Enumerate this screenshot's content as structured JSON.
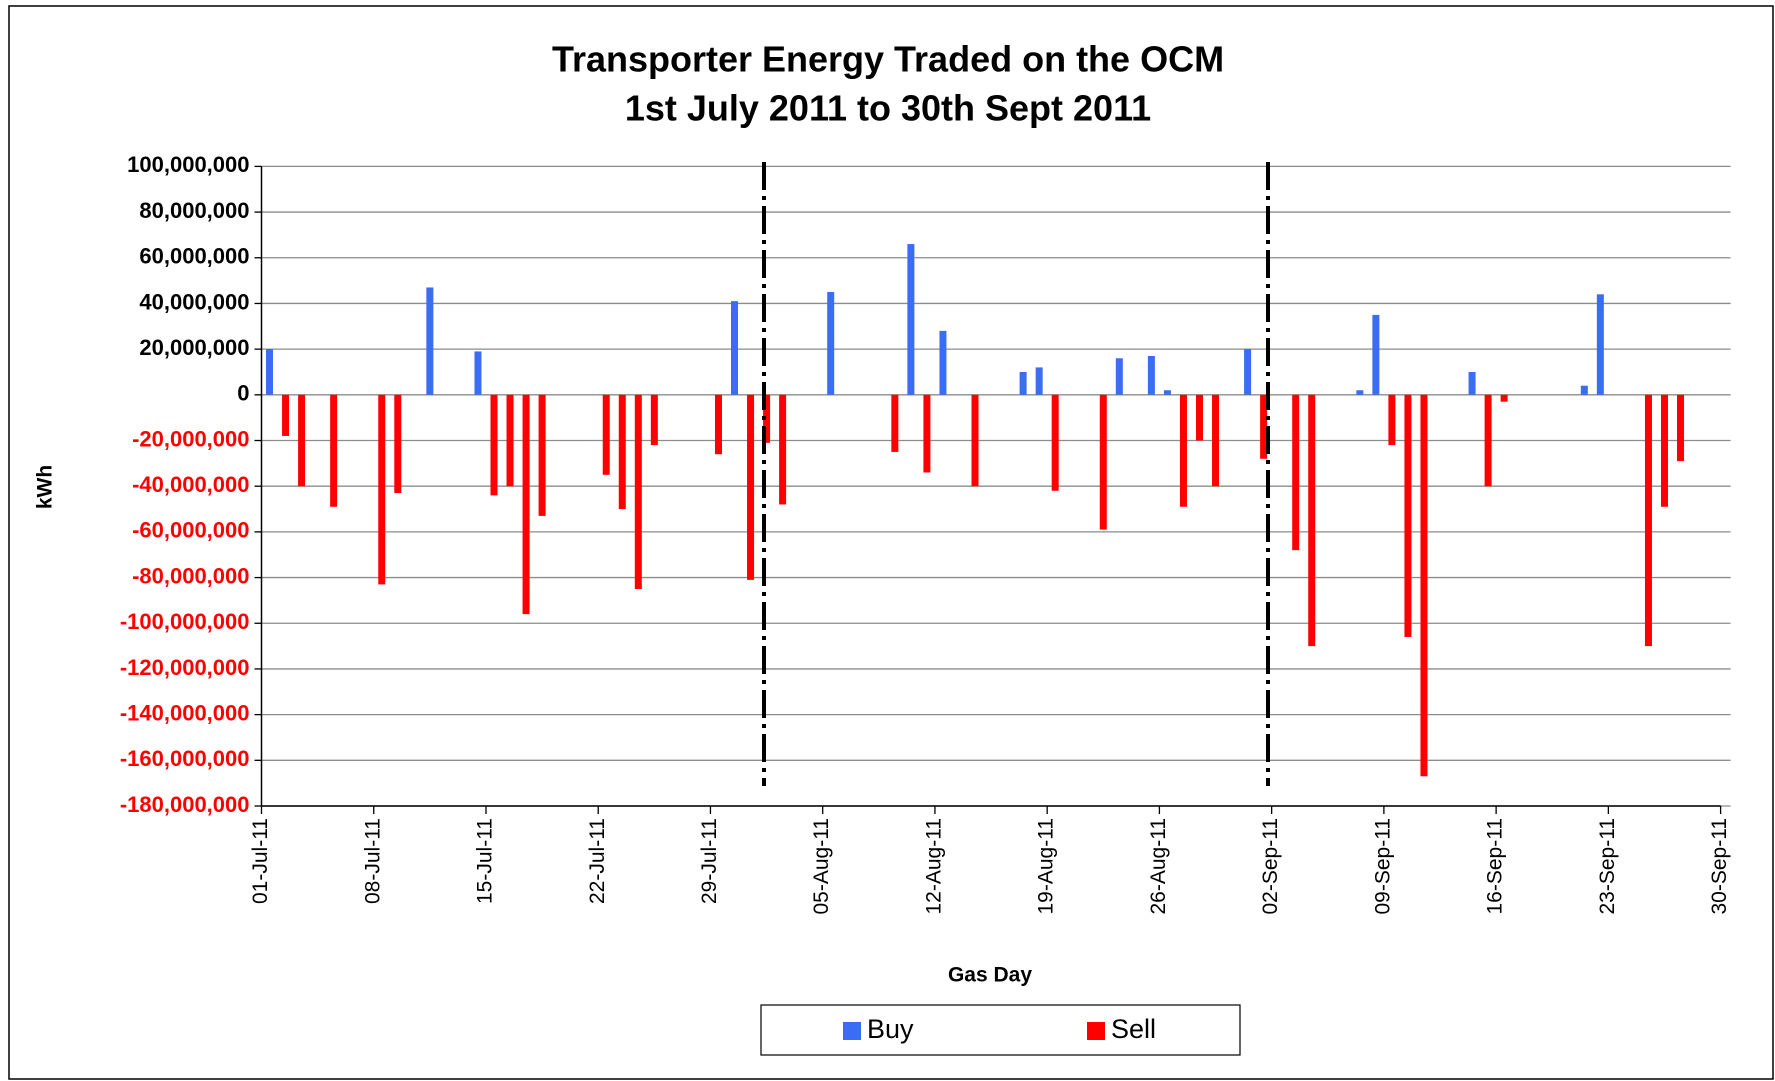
{
  "chart_data": {
    "type": "bar",
    "title": "Transporter Energy Traded on the OCM",
    "subtitle": "1st July 2011 to 30th Sept 2011",
    "x_label": "Gas Day",
    "y_label": "kWh",
    "x": [
      "01-Jul-11",
      "02-Jul-11",
      "03-Jul-11",
      "05-Jul-11",
      "08-Jul-11",
      "09-Jul-11",
      "11-Jul-11",
      "14-Jul-11",
      "15-Jul-11",
      "16-Jul-11",
      "17-Jul-11",
      "18-Jul-11",
      "22-Jul-11",
      "23-Jul-11",
      "24-Jul-11",
      "25-Jul-11",
      "29-Jul-11",
      "30-Jul-11",
      "31-Jul-11",
      "01-Aug-11",
      "02-Aug-11",
      "05-Aug-11",
      "09-Aug-11",
      "10-Aug-11",
      "11-Aug-11",
      "12-Aug-11",
      "14-Aug-11",
      "17-Aug-11",
      "18-Aug-11",
      "19-Aug-11",
      "22-Aug-11",
      "23-Aug-11",
      "25-Aug-11",
      "26-Aug-11",
      "27-Aug-11",
      "28-Aug-11",
      "29-Aug-11",
      "31-Aug-11",
      "01-Sep-11",
      "03-Sep-11",
      "04-Sep-11",
      "07-Sep-11",
      "08-Sep-11",
      "09-Sep-11",
      "10-Sep-11",
      "11-Sep-11",
      "14-Sep-11",
      "15-Sep-11",
      "16-Sep-11",
      "21-Sep-11",
      "22-Sep-11",
      "25-Sep-11",
      "26-Sep-11",
      "27-Sep-11"
    ],
    "series": [
      {
        "name": "Buy",
        "color": "#3a6cf4",
        "values": [
          20000000,
          null,
          null,
          null,
          null,
          null,
          47000000,
          19000000,
          null,
          null,
          null,
          null,
          null,
          null,
          null,
          null,
          null,
          41000000,
          null,
          null,
          null,
          45000000,
          null,
          66000000,
          null,
          28000000,
          null,
          10000000,
          12000000,
          null,
          null,
          16000000,
          17000000,
          2000000,
          null,
          null,
          null,
          20000000,
          null,
          null,
          null,
          2000000,
          35000000,
          null,
          null,
          null,
          10000000,
          null,
          null,
          4000000,
          44000000,
          null,
          null,
          null
        ]
      },
      {
        "name": "Sell",
        "color": "#ff0000",
        "values": [
          null,
          -18000000,
          -40000000,
          -49000000,
          -83000000,
          -43000000,
          null,
          null,
          -44000000,
          -40000000,
          -96000000,
          -53000000,
          -35000000,
          -50000000,
          -85000000,
          -22000000,
          -26000000,
          null,
          -81000000,
          -21000000,
          -48000000,
          null,
          -25000000,
          null,
          -34000000,
          null,
          -40000000,
          null,
          null,
          -42000000,
          -59000000,
          null,
          null,
          null,
          -49000000,
          -20000000,
          -40000000,
          null,
          -28000000,
          -68000000,
          -110000000,
          null,
          null,
          -22000000,
          -106000000,
          -167000000,
          null,
          -40000000,
          -3000000,
          null,
          null,
          -110000000,
          -49000000,
          -29000000
        ]
      }
    ],
    "xlim": [
      "01-Jul-11",
      "30-Sep-11"
    ],
    "xticks": [
      "01-Jul-11",
      "08-Jul-11",
      "15-Jul-11",
      "22-Jul-11",
      "29-Jul-11",
      "05-Aug-11",
      "12-Aug-11",
      "19-Aug-11",
      "26-Aug-11",
      "02-Sep-11",
      "09-Sep-11",
      "16-Sep-11",
      "23-Sep-11",
      "30-Sep-11"
    ],
    "ylim": [
      -180000000,
      100000000
    ],
    "yticks": [
      {
        "value": 100000000,
        "label": "100,000,000"
      },
      {
        "value": 80000000,
        "label": "80,000,000"
      },
      {
        "value": 60000000,
        "label": "60,000,000"
      },
      {
        "value": 40000000,
        "label": "40,000,000"
      },
      {
        "value": 20000000,
        "label": "20,000,000"
      },
      0,
      {
        "value": -20000000,
        "label": "-20,000,000"
      },
      {
        "value": -40000000,
        "label": "-40,000,000"
      },
      {
        "value": -60000000,
        "label": "-60,000,000"
      },
      {
        "value": -80000000,
        "label": "-80,000,000"
      },
      {
        "value": -100000000,
        "label": "-100,000,000"
      },
      {
        "value": -120000000,
        "label": "-120,000,000"
      },
      {
        "value": -140000000,
        "label": "-140,000,000"
      },
      {
        "value": -160000000,
        "label": "-160,000,000"
      },
      {
        "value": -180000000,
        "label": "-180,000,000"
      }
    ],
    "grid": true,
    "legend": "bottom"
  }
}
